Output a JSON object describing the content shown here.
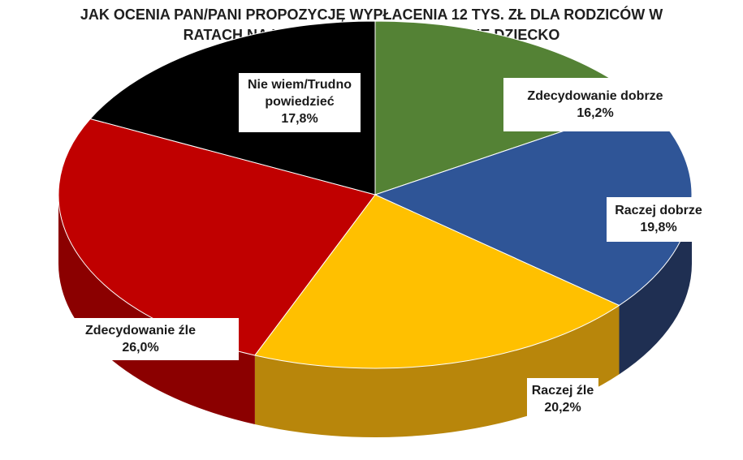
{
  "chart_data": {
    "type": "pie",
    "title_lines": [
      "JAK OCENIA PAN/PANI PROPOZYCJĘ WYPŁACENIA 12 TYS. ZŁ DLA RODZICÓW W",
      "RATACH NA KAŻDE DRUGIE LUB KOLEJNE DZIECKO"
    ],
    "three_d": true,
    "legend": "none",
    "slices": [
      {
        "label_lines": [
          "Zdecydowanie dobrze"
        ],
        "value": 16.2,
        "value_text": "16,2%",
        "color": "#548235",
        "side_color": "#3a5c24"
      },
      {
        "label_lines": [
          "Raczej dobrze"
        ],
        "value": 19.8,
        "value_text": "19,8%",
        "color": "#2f5597",
        "side_color": "#1f2f52"
      },
      {
        "label_lines": [
          "Raczej źle"
        ],
        "value": 20.2,
        "value_text": "20,2%",
        "color": "#ffc000",
        "side_color": "#b8860b"
      },
      {
        "label_lines": [
          "Zdecydowanie źle"
        ],
        "value": 26.0,
        "value_text": "26,0%",
        "color": "#c00000",
        "side_color": "#8b0000"
      },
      {
        "label_lines": [
          "Nie wiem/Trudno",
          "powiedzieć"
        ],
        "value": 17.8,
        "value_text": "17,8%",
        "color": "#000000",
        "side_color": "#000000"
      }
    ]
  }
}
